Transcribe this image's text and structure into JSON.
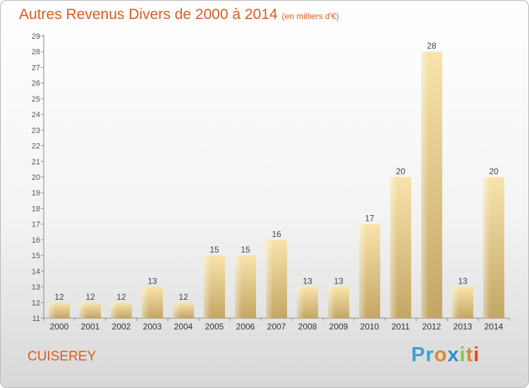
{
  "title": "Autres Revenus Divers de 2000 à 2014",
  "subtitle": "(en milliers d'€)",
  "location": "CUISEREY",
  "logo": {
    "letters": [
      "P",
      "r",
      "o",
      "x",
      "i",
      "t",
      "i"
    ]
  },
  "colors": {
    "accent": "#d95c1e",
    "bar_light": "#f6dea0",
    "bar_dark": "#c4a96a"
  },
  "chart_data": {
    "type": "bar",
    "title": "Autres Revenus Divers de 2000 à 2014",
    "subtitle": "(en milliers d'€)",
    "categories": [
      "2000",
      "2001",
      "2002",
      "2003",
      "2004",
      "2005",
      "2006",
      "2007",
      "2008",
      "2009",
      "2010",
      "2011",
      "2012",
      "2013",
      "2014"
    ],
    "values": [
      12,
      12,
      12,
      13,
      12,
      15,
      15,
      16,
      13,
      13,
      17,
      20,
      28,
      13,
      20
    ],
    "ylim": [
      11,
      29
    ],
    "yticks": [
      11,
      12,
      13,
      14,
      15,
      16,
      17,
      18,
      19,
      20,
      21,
      22,
      23,
      24,
      25,
      26,
      27,
      28,
      29
    ],
    "grid": false,
    "data_labels": true
  }
}
